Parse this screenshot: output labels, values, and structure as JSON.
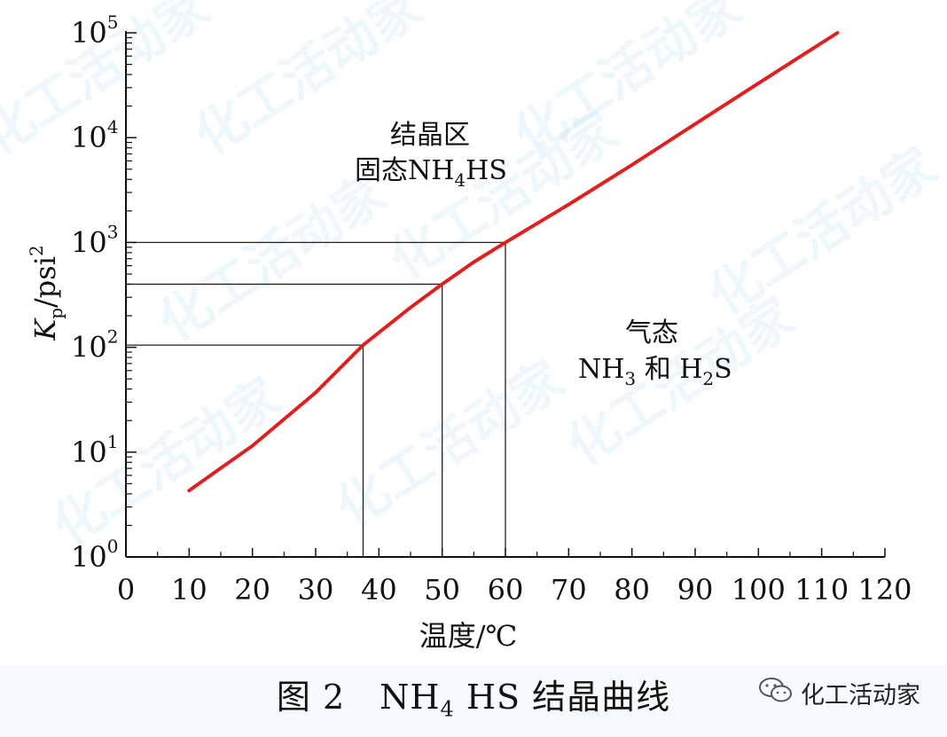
{
  "chart_data": {
    "type": "line",
    "xlabel": "温度/℃",
    "ylabel_base": "K",
    "ylabel_sub": "p",
    "ylabel_unit": "/psi",
    "ylabel_sup": "2",
    "xlim": [
      0,
      120
    ],
    "ylim": [
      1,
      100000
    ],
    "y_scale": "log",
    "x_ticks": [
      0,
      10,
      20,
      30,
      40,
      50,
      60,
      70,
      80,
      90,
      100,
      110,
      120
    ],
    "y_ticks": [
      {
        "base": "10",
        "exp": "0"
      },
      {
        "base": "10",
        "exp": "1"
      },
      {
        "base": "10",
        "exp": "2"
      },
      {
        "base": "10",
        "exp": "3"
      },
      {
        "base": "10",
        "exp": "4"
      },
      {
        "base": "10",
        "exp": "5"
      }
    ],
    "series": [
      {
        "color": "#e02020",
        "x": [
          10,
          20,
          30,
          37.5,
          45,
          50,
          55,
          60,
          70,
          80,
          90,
          100,
          112.5
        ],
        "y": [
          4.3,
          11.5,
          37,
          105,
          240,
          400,
          650,
          1000,
          2300,
          5500,
          13500,
          33000,
          100000
        ]
      }
    ],
    "reference_lines": [
      {
        "x": 37.5,
        "y": 105
      },
      {
        "x": 50,
        "y": 400
      },
      {
        "x": 60,
        "y": 1000
      }
    ],
    "annotations": {
      "crystal_line1": "结晶区",
      "crystal_line2_pre": "固态NH",
      "crystal_line2_sub": "4",
      "crystal_line2_post": "HS",
      "gas_line1": "气态",
      "gas_line2_a": "NH",
      "gas_line2_sub1": "3",
      "gas_line2_b": " 和 H",
      "gas_line2_sub2": "2",
      "gas_line2_c": "S"
    }
  },
  "caption": {
    "prefix": "图 2　NH",
    "sub": "4",
    "suffix": " HS 结晶曲线"
  },
  "brand": {
    "name": "化工活动家",
    "icon": "wechat-icon"
  },
  "watermark": "化工活动家"
}
